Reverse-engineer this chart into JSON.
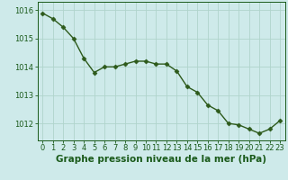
{
  "x": [
    0,
    1,
    2,
    3,
    4,
    5,
    6,
    7,
    8,
    9,
    10,
    11,
    12,
    13,
    14,
    15,
    16,
    17,
    18,
    19,
    20,
    21,
    22,
    23
  ],
  "y": [
    1015.9,
    1015.7,
    1015.4,
    1015.0,
    1014.3,
    1013.8,
    1014.0,
    1014.0,
    1014.1,
    1014.2,
    1014.2,
    1014.1,
    1014.1,
    1013.85,
    1013.3,
    1013.1,
    1012.65,
    1012.45,
    1012.0,
    1011.95,
    1011.8,
    1011.65,
    1011.8,
    1012.1
  ],
  "line_color": "#2d5a1b",
  "marker": "D",
  "marker_size": 2.5,
  "bg_color": "#ceeaea",
  "grid_color": "#b0d4cc",
  "xlabel": "Graphe pression niveau de la mer (hPa)",
  "xlabel_color": "#1a5a1a",
  "tick_color": "#1a5a1a",
  "xlim_min": -0.5,
  "xlim_max": 23.5,
  "ylim_min": 1011.4,
  "ylim_max": 1016.3,
  "yticks": [
    1012,
    1013,
    1014,
    1015,
    1016
  ],
  "xticks": [
    0,
    1,
    2,
    3,
    4,
    5,
    6,
    7,
    8,
    9,
    10,
    11,
    12,
    13,
    14,
    15,
    16,
    17,
    18,
    19,
    20,
    21,
    22,
    23
  ],
  "line_width": 1.0,
  "xlabel_fontsize": 7.5,
  "tick_fontsize": 6.0
}
